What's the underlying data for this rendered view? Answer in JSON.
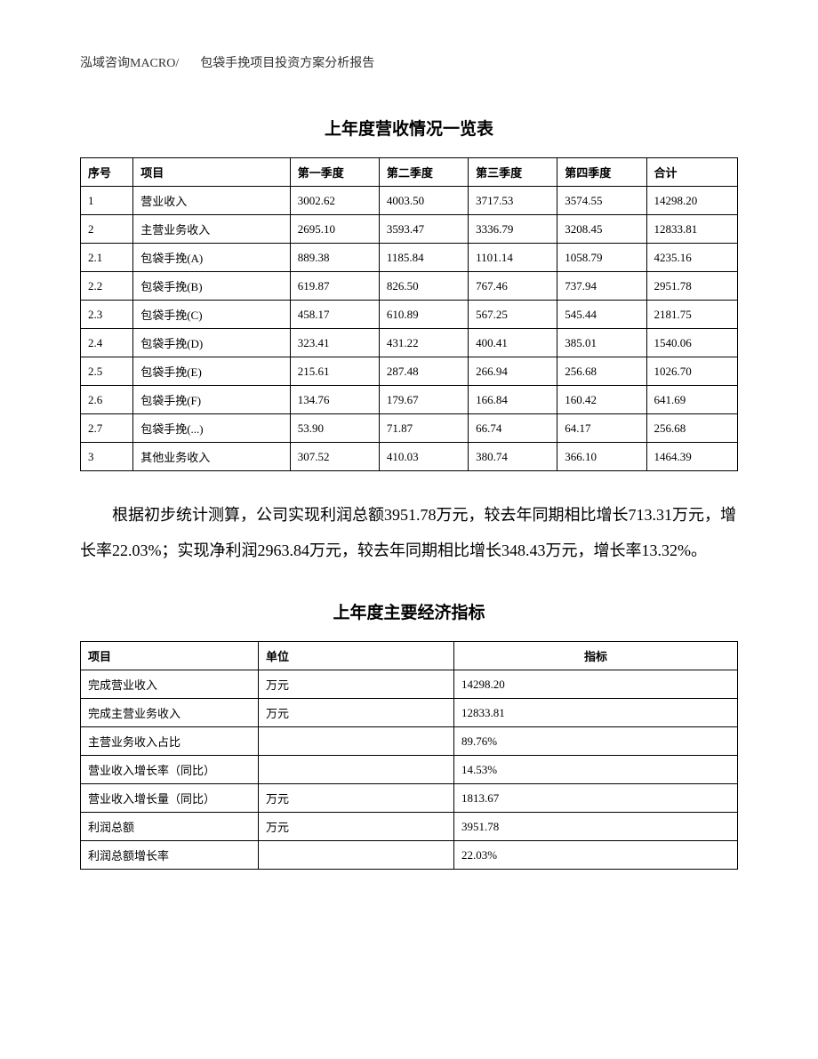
{
  "header": {
    "left": "泓域咨询MACRO/",
    "right": "包袋手挽项目投资方案分析报告"
  },
  "table1": {
    "title": "上年度营收情况一览表",
    "columns": [
      "序号",
      "项目",
      "第一季度",
      "第二季度",
      "第三季度",
      "第四季度",
      "合计"
    ],
    "rows": [
      [
        "1",
        "营业收入",
        "3002.62",
        "4003.50",
        "3717.53",
        "3574.55",
        "14298.20"
      ],
      [
        "2",
        "主营业务收入",
        "2695.10",
        "3593.47",
        "3336.79",
        "3208.45",
        "12833.81"
      ],
      [
        "2.1",
        "包袋手挽(A)",
        "889.38",
        "1185.84",
        "1101.14",
        "1058.79",
        "4235.16"
      ],
      [
        "2.2",
        "包袋手挽(B)",
        "619.87",
        "826.50",
        "767.46",
        "737.94",
        "2951.78"
      ],
      [
        "2.3",
        "包袋手挽(C)",
        "458.17",
        "610.89",
        "567.25",
        "545.44",
        "2181.75"
      ],
      [
        "2.4",
        "包袋手挽(D)",
        "323.41",
        "431.22",
        "400.41",
        "385.01",
        "1540.06"
      ],
      [
        "2.5",
        "包袋手挽(E)",
        "215.61",
        "287.48",
        "266.94",
        "256.68",
        "1026.70"
      ],
      [
        "2.6",
        "包袋手挽(F)",
        "134.76",
        "179.67",
        "166.84",
        "160.42",
        "641.69"
      ],
      [
        "2.7",
        "包袋手挽(...)",
        "53.90",
        "71.87",
        "66.74",
        "64.17",
        "256.68"
      ],
      [
        "3",
        "其他业务收入",
        "307.52",
        "410.03",
        "380.74",
        "366.10",
        "1464.39"
      ]
    ]
  },
  "paragraph": "根据初步统计测算，公司实现利润总额3951.78万元，较去年同期相比增长713.31万元，增长率22.03%；实现净利润2963.84万元，较去年同期相比增长348.43万元，增长率13.32%。",
  "table2": {
    "title": "上年度主要经济指标",
    "columns": [
      "项目",
      "单位",
      "指标"
    ],
    "rows": [
      [
        "完成营业收入",
        "万元",
        "14298.20"
      ],
      [
        "完成主营业务收入",
        "万元",
        "12833.81"
      ],
      [
        "主营业务收入占比",
        "",
        "89.76%"
      ],
      [
        "营业收入增长率（同比）",
        "",
        "14.53%"
      ],
      [
        "营业收入增长量（同比）",
        "万元",
        "1813.67"
      ],
      [
        "利润总额",
        "万元",
        "3951.78"
      ],
      [
        "利润总额增长率",
        "",
        "22.03%"
      ]
    ]
  }
}
